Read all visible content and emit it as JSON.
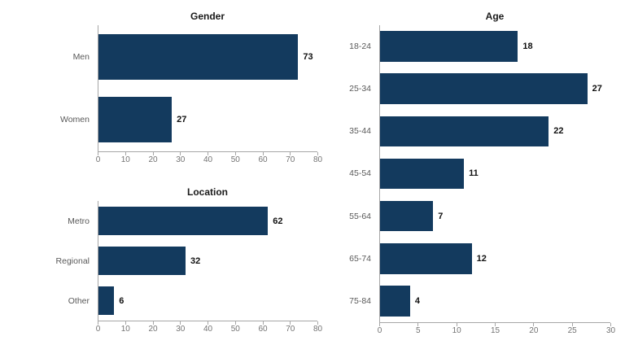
{
  "page": {
    "background_color": "#ffffff",
    "accent_color": "#133A5E",
    "axis_line_color": "#a6a6a6"
  },
  "chart_data": [
    {
      "type": "bar",
      "orientation": "horizontal",
      "title": "Gender",
      "categories": [
        "Men",
        "Women"
      ],
      "values": [
        73,
        27
      ],
      "xlim": [
        0,
        80
      ],
      "ticks": [
        0,
        10,
        20,
        30,
        40,
        50,
        60,
        70,
        80
      ],
      "bar_color": "#133A5E",
      "value_labels": true,
      "grid": false,
      "legend": false
    },
    {
      "type": "bar",
      "orientation": "horizontal",
      "title": "Location",
      "categories": [
        "Metro",
        "Regional",
        "Other"
      ],
      "values": [
        62,
        32,
        6
      ],
      "xlim": [
        0,
        80
      ],
      "ticks": [
        0,
        10,
        20,
        30,
        40,
        50,
        60,
        70,
        80
      ],
      "bar_color": "#133A5E",
      "value_labels": true,
      "grid": false,
      "legend": false
    },
    {
      "type": "bar",
      "orientation": "horizontal",
      "title": "Age",
      "categories": [
        "18-24",
        "25-34",
        "35-44",
        "45-54",
        "55-64",
        "65-74",
        "75-84"
      ],
      "values": [
        18,
        27,
        22,
        11,
        7,
        12,
        4
      ],
      "xlim": [
        0,
        30
      ],
      "ticks": [
        0,
        5,
        10,
        15,
        20,
        25,
        30
      ],
      "bar_color": "#133A5E",
      "value_labels": true,
      "grid": false,
      "legend": false
    }
  ]
}
